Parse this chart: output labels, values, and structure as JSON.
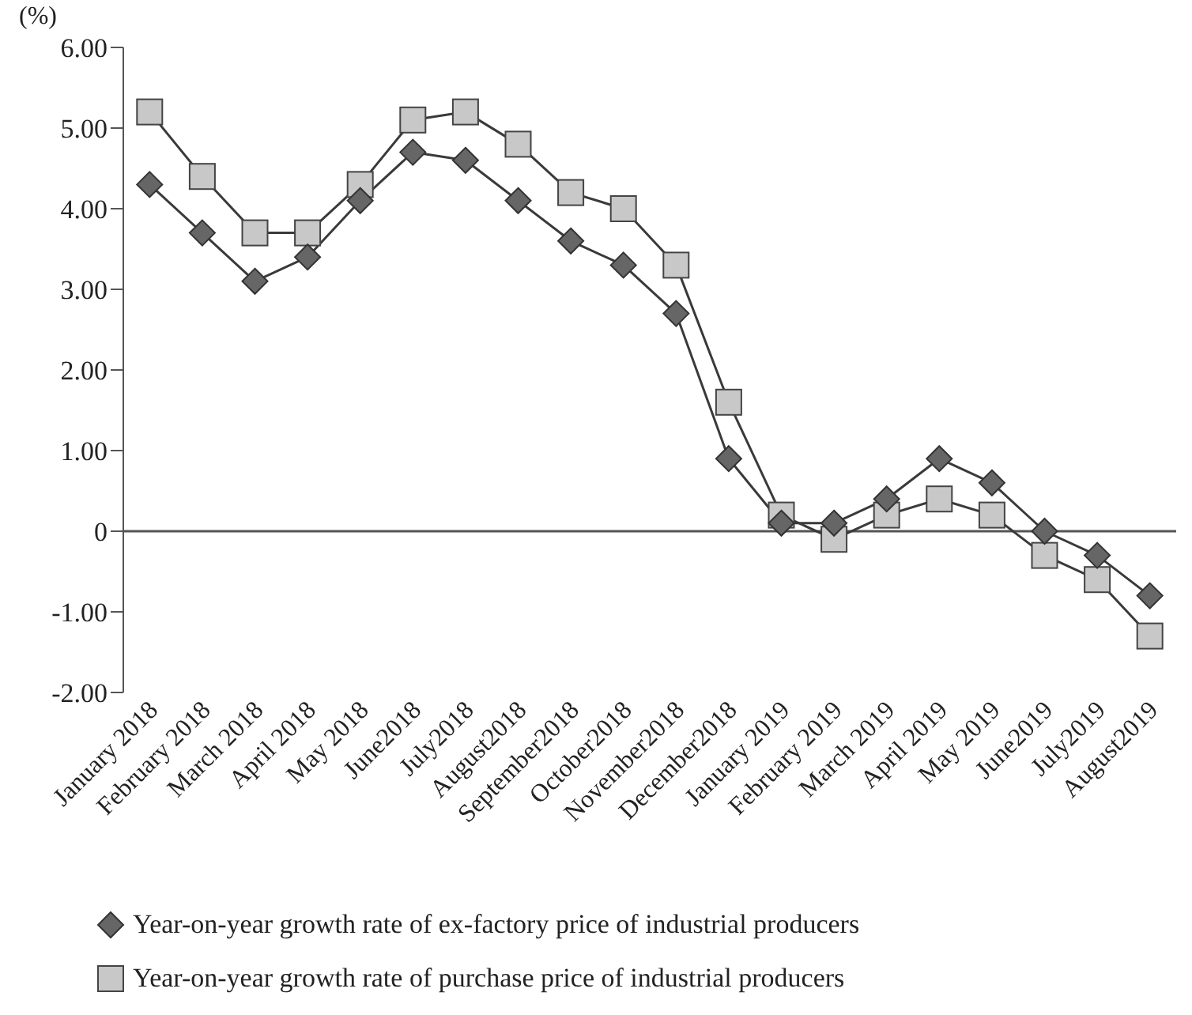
{
  "chart_data": {
    "type": "line",
    "ylabel": "(%)",
    "categories": [
      "January 2018",
      "February 2018",
      "March 2018",
      "April 2018",
      "May 2018",
      "June2018",
      "July2018",
      "August2018",
      "September2018",
      "October2018",
      "November2018",
      "December2018",
      "January 2019",
      "February 2019",
      "March 2019",
      "April 2019",
      "May 2019",
      "June2019",
      "July2019",
      "August2019"
    ],
    "series": [
      {
        "name": "Year-on-year growth rate of ex-factory price of industrial producers",
        "color": "#666666",
        "marker": "diamond",
        "values": [
          4.3,
          3.7,
          3.1,
          3.4,
          4.1,
          4.7,
          4.6,
          4.1,
          3.6,
          3.3,
          2.7,
          0.9,
          0.1,
          0.1,
          0.4,
          0.9,
          0.6,
          0.0,
          -0.3,
          -0.8
        ]
      },
      {
        "name": "Year-on-year growth rate of purchase price of industrial producers",
        "color": "#c8c8c8",
        "marker": "square",
        "values": [
          5.2,
          4.4,
          3.7,
          3.7,
          4.3,
          5.1,
          5.2,
          4.8,
          4.2,
          4.0,
          3.3,
          1.6,
          0.2,
          -0.1,
          0.2,
          0.4,
          0.2,
          -0.3,
          -0.6,
          -1.3
        ]
      }
    ],
    "ylim": [
      -2,
      6
    ],
    "yticks": [
      {
        "value": -2,
        "label": "-2.00"
      },
      {
        "value": -1,
        "label": "-1.00"
      },
      0,
      {
        "value": 1,
        "label": "1.00"
      },
      {
        "value": 2,
        "label": "2.00"
      },
      {
        "value": 3,
        "label": "3.00"
      },
      {
        "value": 4,
        "label": "4.00"
      },
      {
        "value": 5,
        "label": "5.00"
      },
      {
        "value": 6,
        "label": "6.00"
      }
    ],
    "ref_lines": [
      {
        "axis": "y",
        "value": 0,
        "color": "#555555"
      }
    ],
    "grid": false,
    "legend": "bottom"
  }
}
